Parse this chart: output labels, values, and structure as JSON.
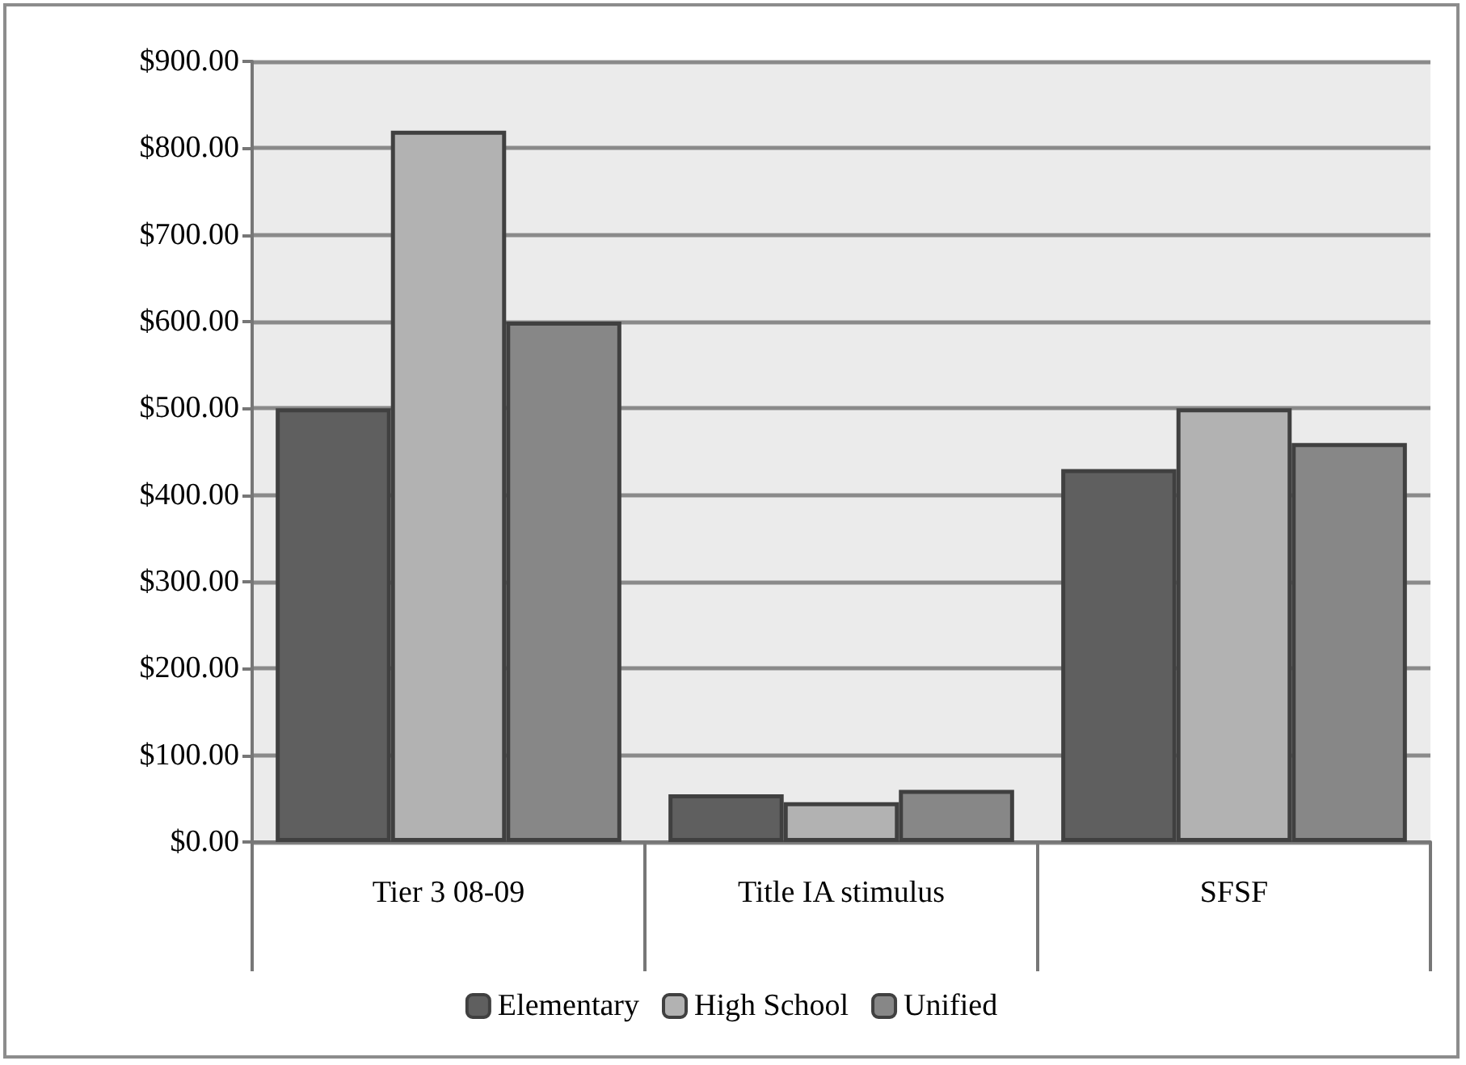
{
  "chart_data": {
    "type": "bar",
    "categories": [
      "Tier 3 08-09",
      "Title IA stimulus",
      "SFSF"
    ],
    "series": [
      {
        "name": "Elementary",
        "color": "#5f5f5f",
        "values": [
          500,
          55,
          430
        ]
      },
      {
        "name": "High School",
        "color": "#b2b2b2",
        "values": [
          820,
          46,
          500
        ]
      },
      {
        "name": "Unified",
        "color": "#878787",
        "values": [
          600,
          60,
          460
        ]
      }
    ],
    "ylim": [
      0,
      900
    ],
    "yticks": [
      {
        "value": 0,
        "label": "$0.00"
      },
      {
        "value": 100,
        "label": "$100.00"
      },
      {
        "value": 200,
        "label": "$200.00"
      },
      {
        "value": 300,
        "label": "$300.00"
      },
      {
        "value": 400,
        "label": "$400.00"
      },
      {
        "value": 500,
        "label": "$500.00"
      },
      {
        "value": 600,
        "label": "$600.00"
      },
      {
        "value": 700,
        "label": "$700.00"
      },
      {
        "value": 800,
        "label": "$800.00"
      },
      {
        "value": 900,
        "label": "$900.00"
      }
    ],
    "grid": "y",
    "legend": "bottom"
  }
}
